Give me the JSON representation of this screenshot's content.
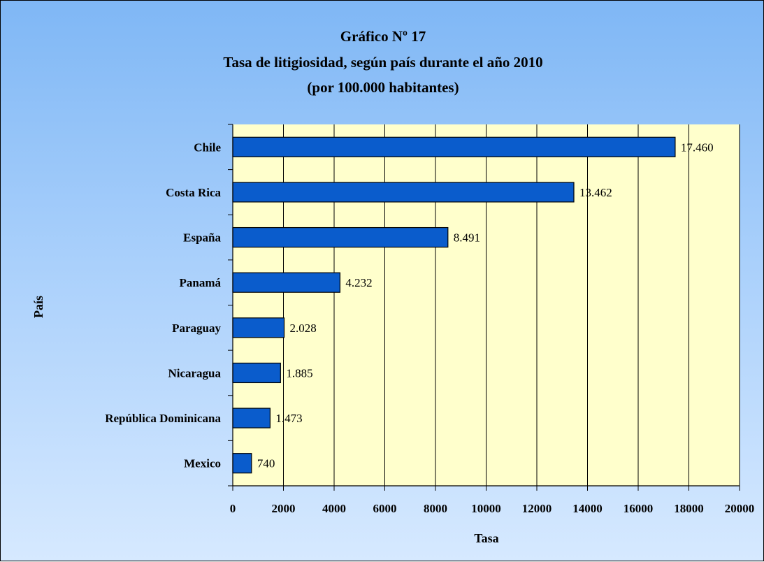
{
  "chart_data": {
    "type": "bar",
    "orientation": "horizontal",
    "title": [
      "Gráfico Nº 17",
      "Tasa de litigiosidad, según país durante el año 2010",
      "(por 100.000 habitantes)"
    ],
    "xlabel": "Tasa",
    "ylabel": "País",
    "categories": [
      "Chile",
      "Costa Rica",
      "España",
      "Panamá",
      "Paraguay",
      "Nicaragua",
      "República Dominicana",
      "Mexico"
    ],
    "values": [
      17460,
      13462,
      8491,
      4232,
      2028,
      1885,
      1473,
      740
    ],
    "data_labels": [
      "17.460",
      "13.462",
      "8.491",
      "4.232",
      "2.028",
      "1.885",
      "1.473",
      "740"
    ],
    "xlim": [
      0,
      20000
    ],
    "xticks": [
      0,
      2000,
      4000,
      6000,
      8000,
      10000,
      12000,
      14000,
      16000,
      18000,
      20000
    ],
    "xtick_labels": [
      "0",
      "2000",
      "4000",
      "6000",
      "8000",
      "10000",
      "12000",
      "14000",
      "16000",
      "18000",
      "20000"
    ],
    "grid": "vertical",
    "legend": "none",
    "colors": {
      "bar": "#0a5ccc",
      "plot_background": "#ffffcc",
      "gridline": "#000000"
    }
  }
}
